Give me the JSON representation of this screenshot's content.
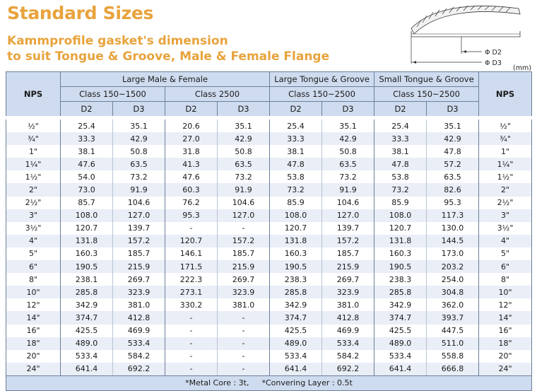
{
  "title": "Standard Sizes",
  "subtitle_line1": "Kammprofile gasket's dimension",
  "subtitle_line2": "to suit Tongue & Groove, Male & Female Flange",
  "diagram": {
    "d2_label": "Φ D2",
    "d3_label": "Φ D3",
    "unit": "(mm)"
  },
  "table": {
    "nps_header": "NPS",
    "groups": [
      "Large Male & Female",
      "Large Tongue & Groove",
      "Small Tongue & Groove"
    ],
    "classes": [
      "Class 150~1500",
      "Class 2500",
      "Class 150~2500",
      "Class 150~2500"
    ],
    "sub": [
      "D2",
      "D3",
      "D2",
      "D3",
      "D2",
      "D3",
      "D2",
      "D3"
    ],
    "rows": [
      {
        "nps": "½\"",
        "v": [
          "25.4",
          "35.1",
          "20.6",
          "35.1",
          "25.4",
          "35.1",
          "25.4",
          "35.1"
        ]
      },
      {
        "nps": "¾\"",
        "v": [
          "33.3",
          "42.9",
          "27.0",
          "42.9",
          "33.3",
          "42.9",
          "33.3",
          "42.9"
        ]
      },
      {
        "nps": "1\"",
        "v": [
          "38.1",
          "50.8",
          "31.8",
          "50.8",
          "38.1",
          "50.8",
          "38.1",
          "47.8"
        ]
      },
      {
        "nps": "1¼\"",
        "v": [
          "47.6",
          "63.5",
          "41.3",
          "63.5",
          "47.8",
          "63.5",
          "47.8",
          "57.2"
        ]
      },
      {
        "nps": "1½\"",
        "v": [
          "54.0",
          "73.2",
          "47.6",
          "73.2",
          "53.8",
          "73.2",
          "53.8",
          "63.5"
        ]
      },
      {
        "nps": "2\"",
        "v": [
          "73.0",
          "91.9",
          "60.3",
          "91.9",
          "73.2",
          "91.9",
          "73.2",
          "82.6"
        ]
      },
      {
        "nps": "2½\"",
        "v": [
          "85.7",
          "104.6",
          "76.2",
          "104.6",
          "85.9",
          "104.6",
          "85.9",
          "95.3"
        ]
      },
      {
        "nps": "3\"",
        "v": [
          "108.0",
          "127.0",
          "95.3",
          "127.0",
          "108.0",
          "127.0",
          "108.0",
          "117.3"
        ]
      },
      {
        "nps": "3½\"",
        "v": [
          "120.7",
          "139.7",
          "-",
          "-",
          "120.7",
          "139.7",
          "120.7",
          "130.0"
        ]
      },
      {
        "nps": "4\"",
        "v": [
          "131.8",
          "157.2",
          "120.7",
          "157.2",
          "131.8",
          "157.2",
          "131.8",
          "144.5"
        ]
      },
      {
        "nps": "5\"",
        "v": [
          "160.3",
          "185.7",
          "146.1",
          "185.7",
          "160.3",
          "185.7",
          "160.3",
          "173.0"
        ]
      },
      {
        "nps": "6\"",
        "v": [
          "190.5",
          "215.9",
          "171.5",
          "215.9",
          "190.5",
          "215.9",
          "190.5",
          "203.2"
        ]
      },
      {
        "nps": "8\"",
        "v": [
          "238.1",
          "269.7",
          "222.3",
          "269.7",
          "238.3",
          "269.7",
          "238.3",
          "254.0"
        ]
      },
      {
        "nps": "10\"",
        "v": [
          "285.8",
          "323.9",
          "273.1",
          "323.9",
          "285.8",
          "323.9",
          "285.8",
          "304.8"
        ]
      },
      {
        "nps": "12\"",
        "v": [
          "342.9",
          "381.0",
          "330.2",
          "381.0",
          "342.9",
          "381.0",
          "342.9",
          "362.0"
        ]
      },
      {
        "nps": "14\"",
        "v": [
          "374.7",
          "412.8",
          "-",
          "-",
          "374.7",
          "412.8",
          "374.7",
          "393.7"
        ]
      },
      {
        "nps": "16\"",
        "v": [
          "425.5",
          "469.9",
          "-",
          "-",
          "425.5",
          "469.9",
          "425.5",
          "447.5"
        ]
      },
      {
        "nps": "18\"",
        "v": [
          "489.0",
          "533.4",
          "-",
          "-",
          "489.0",
          "533.4",
          "489.0",
          "511.0"
        ]
      },
      {
        "nps": "20\"",
        "v": [
          "533.4",
          "584.2",
          "-",
          "-",
          "533.4",
          "584.2",
          "533.4",
          "558.8"
        ]
      },
      {
        "nps": "24\"",
        "v": [
          "641.4",
          "692.2",
          "-",
          "-",
          "641.4",
          "692.2",
          "641.4",
          "666.8"
        ]
      }
    ],
    "footnote_core": "*Metal Core : 3t,",
    "footnote_layer": "*Convering Layer : 0.5t"
  }
}
